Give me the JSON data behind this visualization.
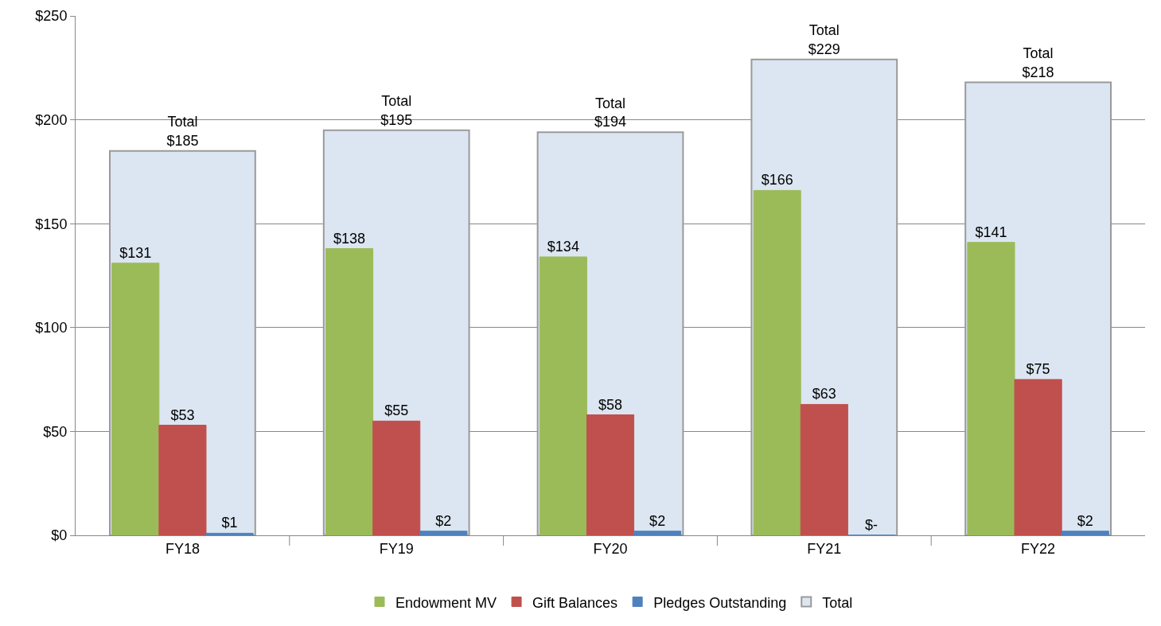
{
  "chart_data": {
    "type": "bar",
    "categories": [
      "FY18",
      "FY19",
      "FY20",
      "FY21",
      "FY22"
    ],
    "series": [
      {
        "name": "Endowment MV",
        "color": "#9bbb59",
        "values": [
          131,
          138,
          134,
          166,
          141
        ],
        "value_labels": [
          "$131",
          "$138",
          "$134",
          "$166",
          "$141"
        ]
      },
      {
        "name": "Gift Balances",
        "color": "#c0504d",
        "values": [
          53,
          55,
          58,
          63,
          75
        ],
        "value_labels": [
          "$53",
          "$55",
          "$58",
          "$63",
          "$75"
        ]
      },
      {
        "name": "Pledges Outstanding",
        "color": "#4f81bd",
        "values": [
          1,
          2,
          2,
          0,
          2
        ],
        "value_labels": [
          "$1",
          "$2",
          "$2",
          "$-",
          "$2"
        ]
      },
      {
        "name": "Total",
        "color": "#dce6f2",
        "values": [
          185,
          195,
          194,
          229,
          218
        ],
        "value_labels": [
          "Total\n$185",
          "Total\n$195",
          "Total\n$194",
          "Total\n$229",
          "Total\n$218"
        ]
      }
    ],
    "ylim": [
      0,
      250
    ],
    "yticks": [
      {
        "value": 0,
        "label": "$0"
      },
      {
        "value": 50,
        "label": "$50"
      },
      {
        "value": 100,
        "label": "$100"
      },
      {
        "value": 150,
        "label": "$150"
      },
      {
        "value": 200,
        "label": "$200"
      },
      {
        "value": 250,
        "label": "$250"
      }
    ],
    "grid": "y",
    "legend": "bottom"
  }
}
